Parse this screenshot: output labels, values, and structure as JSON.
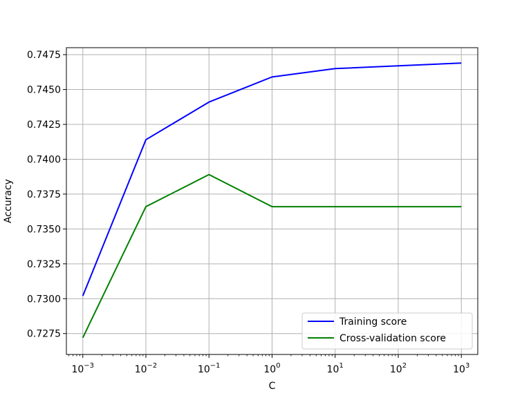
{
  "chart_data": {
    "type": "line",
    "xlabel": "C",
    "ylabel": "Accuracy",
    "x_scale": "log",
    "x": [
      0.001,
      0.01,
      0.1,
      1,
      10,
      100,
      1000
    ],
    "x_tick_labels": [
      {
        "base": "10",
        "exp": "−3"
      },
      {
        "base": "10",
        "exp": "−2"
      },
      {
        "base": "10",
        "exp": "−1"
      },
      {
        "base": "10",
        "exp": "0"
      },
      {
        "base": "10",
        "exp": "1"
      },
      {
        "base": "10",
        "exp": "2"
      },
      {
        "base": "10",
        "exp": "3"
      }
    ],
    "xlim": [
      0.000549,
      1822
    ],
    "ylim": [
      0.726,
      0.748
    ],
    "y_ticks": [
      0.7275,
      0.73,
      0.7325,
      0.735,
      0.7375,
      0.74,
      0.7425,
      0.745,
      0.7475
    ],
    "y_tick_labels": [
      "0.7275",
      "0.7300",
      "0.7325",
      "0.7350",
      "0.7375",
      "0.7400",
      "0.7425",
      "0.7450",
      "0.7475"
    ],
    "grid": true,
    "legend_position": "bottom-right",
    "series": [
      {
        "name": "Training score",
        "color": "#0000ff",
        "values": [
          0.7302,
          0.7414,
          0.7441,
          0.7459,
          0.7465,
          0.7467,
          0.7469
        ]
      },
      {
        "name": "Cross-validation score",
        "color": "#008000",
        "values": [
          0.7272,
          0.7366,
          0.7389,
          0.7366,
          0.7366,
          0.7366,
          0.7366
        ]
      }
    ]
  }
}
